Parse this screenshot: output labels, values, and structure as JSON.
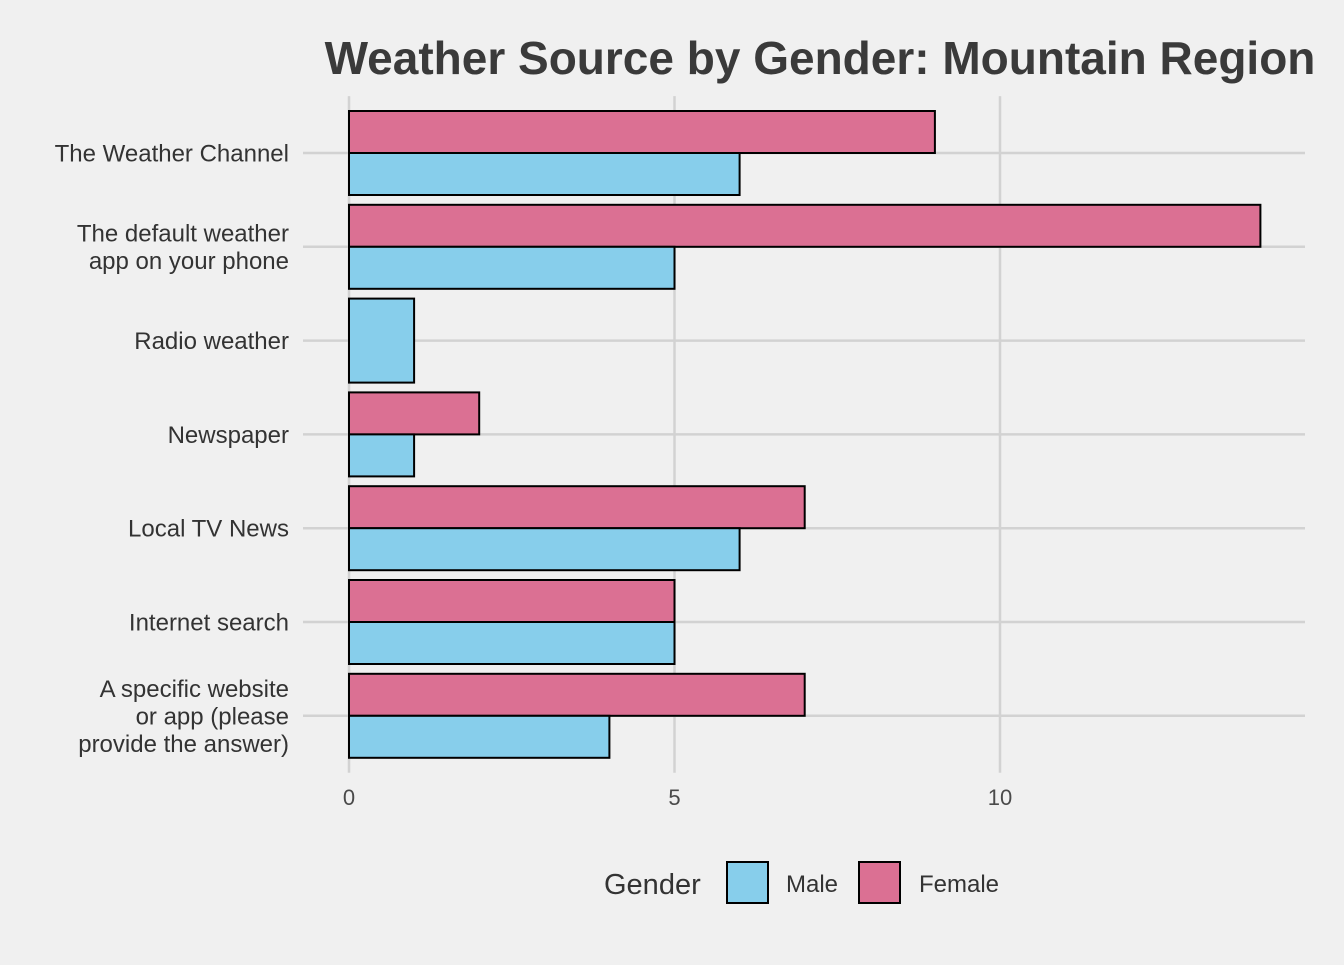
{
  "chart_data": {
    "type": "bar",
    "orientation": "horizontal",
    "title": "Weather Source by Gender: Mountain Region",
    "xlabel": "",
    "ylabel": "",
    "categories": [
      [
        "The Weather Channel"
      ],
      [
        "The default weather",
        "app on your phone"
      ],
      [
        "Radio weather"
      ],
      [
        "Newspaper"
      ],
      [
        "Local TV News"
      ],
      [
        "Internet search"
      ],
      [
        "A specific website",
        "or app (please",
        "provide the answer)"
      ]
    ],
    "series": [
      {
        "name": "Male",
        "color": "#87ceeb",
        "values": [
          6,
          5,
          1,
          1,
          6,
          5,
          4
        ]
      },
      {
        "name": "Female",
        "color": "#db7093",
        "values": [
          9,
          14,
          0,
          2,
          7,
          5,
          7
        ]
      }
    ],
    "xlim": [
      0,
      14.7
    ],
    "xticks": [
      0,
      5,
      10
    ],
    "grid": true,
    "legend": {
      "title": "Gender",
      "placement": "bottom",
      "entries": [
        "Male",
        "Female"
      ]
    },
    "bar_outline_color": "#000000",
    "background_color": "#f0f0f0"
  }
}
